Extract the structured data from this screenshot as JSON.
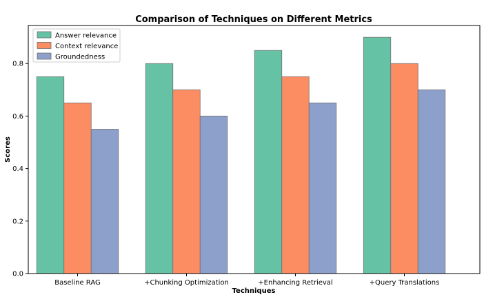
{
  "chart_data": {
    "type": "bar",
    "title": "Comparison of Techniques on Different Metrics",
    "xlabel": "Techniques",
    "ylabel": "Scores",
    "categories": [
      "Baseline RAG",
      "+Chunking Optimization",
      "+Enhancing Retrieval",
      "+Query Translations"
    ],
    "series": [
      {
        "name": "Answer relevance",
        "values": [
          0.75,
          0.8,
          0.85,
          0.9
        ],
        "color": "#66c2a5"
      },
      {
        "name": "Context relevance",
        "values": [
          0.65,
          0.7,
          0.75,
          0.8
        ],
        "color": "#fc8d62"
      },
      {
        "name": "Groundedness",
        "values": [
          0.55,
          0.6,
          0.65,
          0.7
        ],
        "color": "#8da0cb"
      }
    ],
    "ylim": [
      0,
      0.945
    ],
    "yticks": [
      0.0,
      0.2,
      0.4,
      0.6,
      0.8
    ],
    "ytick_labels": [
      "0.0",
      "0.2",
      "0.4",
      "0.6",
      "0.8"
    ],
    "grid": false,
    "legend_position": "top-left",
    "bar_edge_color": "#6e6e6e"
  }
}
